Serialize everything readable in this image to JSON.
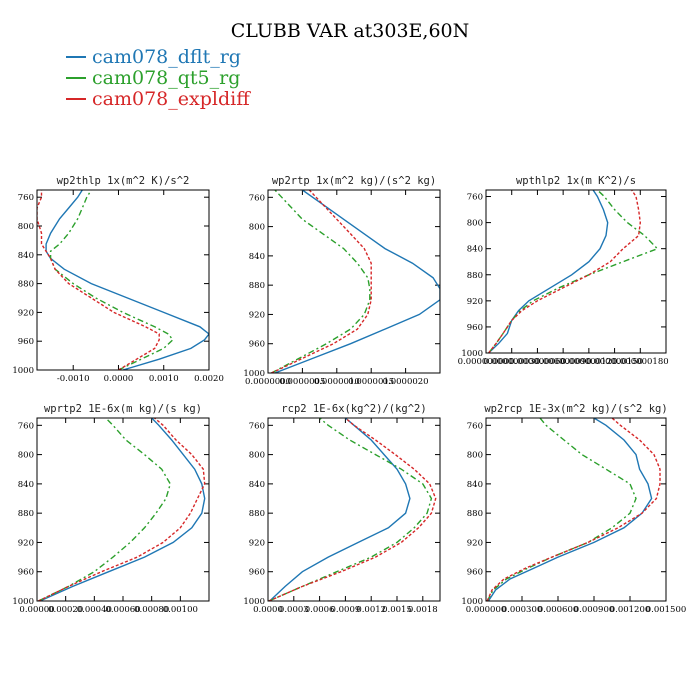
{
  "title": "CLUBB VAR at303E,60N",
  "legend": [
    {
      "label": "cam078_dflt_rg",
      "color": "#1f77b4"
    },
    {
      "label": "cam078_qt5_rg",
      "color": "#2ca02c"
    },
    {
      "label": "cam078_expldiff",
      "color": "#d62728"
    }
  ],
  "chart_data": [
    {
      "type": "line",
      "title": "wp2thlp  1x(m^2 K)/s^2",
      "xlim": [
        -0.0018,
        0.002
      ],
      "ylim": [
        1000,
        750
      ],
      "yticks": [
        760,
        800,
        840,
        880,
        920,
        960,
        1000
      ],
      "xticks": [
        -0.001,
        0.0,
        0.001,
        0.002
      ],
      "xtick_labels": [
        "-0.0010",
        "0.0000",
        "0.0010",
        "0.0020"
      ],
      "series": [
        {
          "name": "cam078_dflt_rg",
          "p": [
            1000,
            985,
            970,
            958,
            950,
            940,
            920,
            900,
            880,
            860,
            845,
            835,
            825,
            810,
            790,
            775,
            760,
            750
          ],
          "values": [
            0.0001,
            0.0009,
            0.0016,
            0.0019,
            0.002,
            0.0018,
            0.001,
            0.0002,
            -0.0006,
            -0.0012,
            -0.0015,
            -0.0016,
            -0.0016,
            -0.0015,
            -0.0013,
            -0.0011,
            -0.0009,
            -0.0008
          ]
        },
        {
          "name": "cam078_qt5_rg",
          "p": [
            1000,
            985,
            970,
            958,
            950,
            940,
            920,
            900,
            880,
            860,
            845,
            835,
            825,
            810,
            790,
            775,
            760,
            750
          ],
          "values": [
            0.0,
            0.0005,
            0.001,
            0.0012,
            0.0011,
            0.0008,
            0.0001,
            -0.0005,
            -0.001,
            -0.0014,
            -0.0015,
            -0.0015,
            -0.0013,
            -0.0011,
            -0.0009,
            -0.0008,
            -0.0007,
            -0.0006
          ]
        },
        {
          "name": "cam078_expldiff",
          "p": [
            1000,
            985,
            970,
            958,
            950,
            940,
            920,
            900,
            880,
            860,
            845,
            835,
            825,
            810,
            790,
            775,
            760,
            750
          ],
          "values": [
            0.0,
            0.0004,
            0.0008,
            0.0009,
            0.0009,
            0.0006,
            -0.0001,
            -0.0006,
            -0.0011,
            -0.0014,
            -0.0015,
            -0.0016,
            -0.0017,
            -0.0017,
            -0.0018,
            -0.0018,
            -0.0017,
            -0.0017
          ]
        }
      ]
    },
    {
      "type": "line",
      "title": "wp2rtp  1x(m^2 kg)/(s^2 kg)",
      "xlim": [
        0.0,
        2.5e-06
      ],
      "ylim": [
        1000,
        750
      ],
      "yticks": [
        760,
        800,
        840,
        880,
        920,
        960,
        1000
      ],
      "xticks": [
        0.0,
        5e-07,
        1e-06,
        1.5e-06,
        2e-06
      ],
      "xtick_labels": [
        "0.0000000",
        "0.0000005",
        "0.0000010",
        "0.0000015",
        "0.0000020"
      ],
      "series": [
        {
          "name": "cam078_dflt_rg",
          "p": [
            1000,
            980,
            960,
            940,
            920,
            900,
            885,
            870,
            850,
            830,
            810,
            790,
            770,
            750
          ],
          "values": [
            1e-07,
            6.5e-07,
            1.2e-06,
            1.7e-06,
            2.2e-06,
            2.5e-06,
            2.5e-06,
            2.4e-06,
            2.1e-06,
            1.7e-06,
            1.4e-06,
            1.1e-06,
            8e-07,
            5e-07
          ]
        },
        {
          "name": "cam078_qt5_rg",
          "p": [
            1000,
            980,
            960,
            940,
            920,
            900,
            885,
            870,
            850,
            830,
            810,
            790,
            770,
            750
          ],
          "values": [
            5e-08,
            4.5e-07,
            8.5e-07,
            1.2e-06,
            1.4e-06,
            1.48e-06,
            1.48e-06,
            1.45e-06,
            1.3e-06,
            1.1e-06,
            8e-07,
            5e-07,
            3e-07,
            1e-07
          ]
        },
        {
          "name": "cam078_expldiff",
          "p": [
            1000,
            980,
            960,
            940,
            920,
            900,
            885,
            870,
            850,
            830,
            810,
            790,
            770,
            750
          ],
          "values": [
            5e-08,
            5e-07,
            9.5e-07,
            1.3e-06,
            1.45e-06,
            1.5e-06,
            1.5e-06,
            1.5e-06,
            1.5e-06,
            1.4e-06,
            1.2e-06,
            1e-06,
            8e-07,
            6e-07
          ]
        }
      ]
    },
    {
      "type": "line",
      "title": "wpthlp2  1x(m K^2)/s",
      "xlim": [
        0.0,
        2.1e-07
      ],
      "ylim": [
        1000,
        750
      ],
      "yticks": [
        760,
        800,
        840,
        880,
        920,
        960,
        1000
      ],
      "xticks": [
        0.0,
        3e-08,
        6e-08,
        9e-08,
        1.2e-07,
        1.5e-07,
        1.8e-07
      ],
      "xtick_labels": [
        "0.000000000",
        "0.000000030",
        "0.000000060",
        "0.000000090",
        "0.000000120",
        "0.000000150",
        "0.000000180"
      ],
      "series": [
        {
          "name": "cam078_dflt_rg",
          "p": [
            1000,
            985,
            970,
            950,
            935,
            920,
            900,
            880,
            860,
            840,
            820,
            800,
            780,
            760,
            750
          ],
          "values": [
            3e-09,
            1.5e-08,
            2.5e-08,
            3e-08,
            3.8e-08,
            5e-08,
            7.5e-08,
            1e-07,
            1.2e-07,
            1.33e-07,
            1.4e-07,
            1.42e-07,
            1.37e-07,
            1.3e-07,
            1.25e-07
          ]
        },
        {
          "name": "cam078_qt5_rg",
          "p": [
            1000,
            985,
            970,
            950,
            935,
            920,
            900,
            880,
            860,
            840,
            820,
            800,
            780,
            760,
            750
          ],
          "values": [
            3e-09,
            1.2e-08,
            2e-08,
            3e-08,
            4e-08,
            5.5e-08,
            8.5e-08,
            1.2e-07,
            1.6e-07,
            2e-07,
            1.85e-07,
            1.65e-07,
            1.5e-07,
            1.38e-07,
            1.3e-07
          ]
        },
        {
          "name": "cam078_expldiff",
          "p": [
            1000,
            985,
            970,
            950,
            935,
            920,
            900,
            880,
            860,
            840,
            820,
            800,
            780,
            760,
            750
          ],
          "values": [
            3e-09,
            1.2e-08,
            2e-08,
            3e-08,
            4.2e-08,
            6e-08,
            9e-08,
            1.2e-07,
            1.45e-07,
            1.6e-07,
            1.78e-07,
            1.8e-07,
            1.78e-07,
            1.75e-07,
            1.7e-07
          ]
        }
      ]
    },
    {
      "type": "line",
      "title": "wprtp2  1E-6x(m kg)/(s kg)",
      "xlim": [
        0.0,
        0.0012
      ],
      "ylim": [
        1000,
        750
      ],
      "yticks": [
        760,
        800,
        840,
        880,
        920,
        960,
        1000
      ],
      "xticks": [
        0.0,
        0.0002,
        0.0004,
        0.0006,
        0.0008,
        0.001
      ],
      "xtick_labels": [
        "0.00000",
        "0.00020",
        "0.00040",
        "0.00060",
        "0.00080",
        "0.00100"
      ],
      "series": [
        {
          "name": "cam078_dflt_rg",
          "p": [
            1000,
            980,
            960,
            940,
            920,
            900,
            880,
            860,
            840,
            820,
            800,
            780,
            760,
            750
          ],
          "values": [
            2e-05,
            0.00025,
            0.0005,
            0.00075,
            0.00095,
            0.00108,
            0.00115,
            0.00117,
            0.00115,
            0.0011,
            0.00102,
            0.00094,
            0.00085,
            0.0008
          ]
        },
        {
          "name": "cam078_qt5_rg",
          "p": [
            1000,
            980,
            960,
            940,
            920,
            900,
            880,
            860,
            840,
            820,
            800,
            780,
            760,
            750
          ],
          "values": [
            1e-05,
            0.00022,
            0.0004,
            0.00053,
            0.00065,
            0.00075,
            0.00083,
            0.0009,
            0.00093,
            0.00087,
            0.00075,
            0.00062,
            0.00053,
            0.00048
          ]
        },
        {
          "name": "cam078_expldiff",
          "p": [
            1000,
            980,
            960,
            940,
            920,
            900,
            880,
            860,
            840,
            820,
            800,
            780,
            760,
            750
          ],
          "values": [
            1e-05,
            0.00022,
            0.00045,
            0.0007,
            0.00088,
            0.001,
            0.00107,
            0.00112,
            0.00117,
            0.00116,
            0.00108,
            0.00097,
            0.00088,
            0.00082
          ]
        }
      ]
    },
    {
      "type": "line",
      "title": "rcp2  1E-6x(kg^2)/(kg^2)",
      "xlim": [
        0.0,
        0.002
      ],
      "ylim": [
        1000,
        750
      ],
      "yticks": [
        760,
        800,
        840,
        880,
        920,
        960,
        1000
      ],
      "xticks": [
        0.0,
        0.0003,
        0.0006,
        0.0009,
        0.0012,
        0.0015,
        0.0018
      ],
      "xtick_labels": [
        "0.0000",
        "0.0003",
        "0.0006",
        "0.0009",
        "0.0012",
        "0.0015",
        "0.0018"
      ],
      "series": [
        {
          "name": "cam078_dflt_rg",
          "p": [
            1000,
            980,
            960,
            940,
            920,
            900,
            880,
            860,
            840,
            820,
            800,
            780,
            760,
            750
          ],
          "values": [
            2e-05,
            0.0002,
            0.0004,
            0.0007,
            0.00105,
            0.0014,
            0.0016,
            0.00165,
            0.0016,
            0.0015,
            0.00135,
            0.0012,
            0.001,
            0.0009
          ]
        },
        {
          "name": "cam078_qt5_rg",
          "p": [
            1000,
            980,
            960,
            940,
            920,
            900,
            880,
            860,
            840,
            820,
            800,
            780,
            760,
            750
          ],
          "values": [
            1e-05,
            0.0004,
            0.0008,
            0.0012,
            0.0015,
            0.0017,
            0.00185,
            0.0019,
            0.0018,
            0.00155,
            0.00125,
            0.00095,
            0.0007,
            0.0006
          ]
        },
        {
          "name": "cam078_expldiff",
          "p": [
            1000,
            980,
            960,
            940,
            920,
            900,
            880,
            860,
            840,
            820,
            800,
            780,
            760,
            750
          ],
          "values": [
            1e-05,
            0.0004,
            0.00085,
            0.00125,
            0.00155,
            0.00175,
            0.0019,
            0.00195,
            0.00188,
            0.0017,
            0.00148,
            0.00125,
            0.001,
            0.0009
          ]
        }
      ]
    },
    {
      "type": "line",
      "title": "wp2rcp  1E-3x(m^2 kg)/(s^2 kg)",
      "xlim": [
        0.0,
        0.0015
      ],
      "ylim": [
        1000,
        750
      ],
      "yticks": [
        760,
        800,
        840,
        880,
        920,
        960,
        1000
      ],
      "xticks": [
        0.0,
        0.0003,
        0.0006,
        0.0009,
        0.0012,
        0.0015
      ],
      "xtick_labels": [
        "0.000000",
        "0.000300",
        "0.000600",
        "0.000900",
        "0.001200",
        "0.001500"
      ],
      "series": [
        {
          "name": "cam078_dflt_rg",
          "p": [
            1000,
            985,
            970,
            955,
            940,
            920,
            900,
            880,
            860,
            840,
            820,
            800,
            780,
            760,
            750
          ],
          "values": [
            2e-05,
            8e-05,
            0.0002,
            0.0004,
            0.0006,
            0.0009,
            0.00115,
            0.0013,
            0.00138,
            0.00135,
            0.00128,
            0.00125,
            0.00115,
            0.001,
            0.0009
          ]
        },
        {
          "name": "cam078_qt5_rg",
          "p": [
            1000,
            985,
            970,
            955,
            940,
            920,
            900,
            880,
            860,
            840,
            820,
            800,
            780,
            760,
            750
          ],
          "values": [
            1e-05,
            6e-05,
            0.00017,
            0.00035,
            0.00055,
            0.00085,
            0.00105,
            0.0012,
            0.00125,
            0.0012,
            0.001,
            0.0008,
            0.00065,
            0.0005,
            0.00045
          ]
        },
        {
          "name": "cam078_expldiff",
          "p": [
            1000,
            985,
            970,
            955,
            940,
            920,
            900,
            880,
            860,
            840,
            820,
            800,
            780,
            760,
            750
          ],
          "values": [
            1e-05,
            5e-05,
            0.00015,
            0.00033,
            0.00055,
            0.00085,
            0.0011,
            0.0013,
            0.00142,
            0.00145,
            0.00145,
            0.0014,
            0.00128,
            0.00112,
            0.00105
          ]
        }
      ]
    }
  ]
}
